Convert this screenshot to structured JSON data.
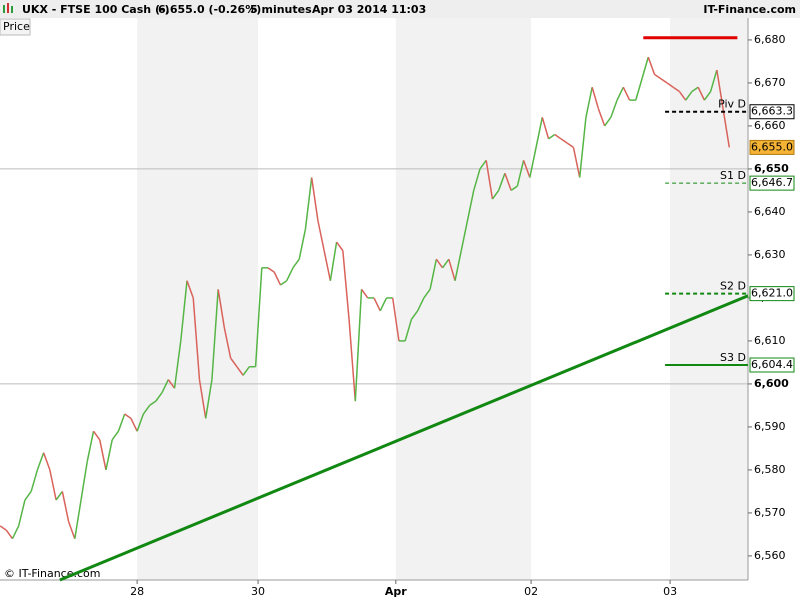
{
  "header": {
    "symbol": "UKX - FTSE 100 Cash (-)",
    "quote": "6,655.0 (-0.26%)",
    "interval": "5 minutes",
    "datetime": "Apr 03 2014 11:03",
    "brand": "IT-Finance.com"
  },
  "chart_data": {
    "type": "line",
    "legend_label": "Price",
    "watermark": "© IT-Finance.com",
    "x": [
      0,
      1,
      2,
      3,
      4,
      5,
      6,
      7,
      8,
      9,
      10,
      11,
      12,
      13,
      14,
      15,
      16,
      17,
      18,
      19,
      20,
      21,
      22,
      23,
      24,
      25,
      26,
      27,
      28,
      29,
      30,
      31,
      32,
      33,
      34,
      35,
      36,
      37,
      38,
      39,
      40,
      41,
      42,
      43,
      44,
      45,
      46,
      47,
      48,
      49,
      50,
      51,
      52,
      53,
      54,
      55,
      56,
      57,
      58,
      59,
      60,
      61,
      62,
      63,
      64,
      65,
      66,
      67,
      68,
      69,
      70,
      71,
      72,
      73,
      74,
      75,
      76,
      77,
      78,
      79,
      80,
      81,
      82,
      83,
      84,
      85,
      86,
      87,
      88,
      89,
      90,
      91,
      92,
      93,
      94,
      95,
      96,
      97,
      98,
      99,
      100,
      101,
      102,
      103,
      104,
      105,
      106,
      107,
      108,
      109,
      110,
      111,
      112,
      113,
      114,
      115,
      116,
      117
    ],
    "values": [
      6567,
      6566,
      6564,
      6567,
      6573,
      6575,
      6580,
      6584,
      6580,
      6573,
      6575,
      6568,
      6564,
      6573,
      6582,
      6589,
      6587,
      6580,
      6587,
      6589,
      6593,
      6592,
      6589,
      6593,
      6595,
      6596,
      6598,
      6601,
      6599,
      6610,
      6624,
      6620,
      6601,
      6592,
      6601,
      6622,
      6613,
      6606,
      6604,
      6602,
      6604,
      6604,
      6627,
      6627,
      6626,
      6623,
      6624,
      6627,
      6629,
      6636,
      6648,
      6638,
      6631,
      6624,
      6633,
      6631,
      6615,
      6596,
      6622,
      6620,
      6620,
      6617,
      6620,
      6620,
      6610,
      6610,
      6615,
      6617,
      6620,
      6622,
      6629,
      6627,
      6629,
      6624,
      6631,
      6638,
      6645,
      6650,
      6652,
      6643,
      6645,
      6649,
      6645,
      6646,
      6652,
      6648,
      6655,
      6662,
      6657,
      6658,
      6657,
      6656,
      6655,
      6648,
      6662,
      6669,
      6664,
      6660,
      6662,
      6666,
      6669,
      6666,
      6666,
      6671,
      6676,
      6672,
      6671,
      6670,
      6669,
      6668,
      6666,
      6668,
      6669,
      6666,
      6668,
      6673,
      6664,
      6655
    ],
    "up_color": "#55b545",
    "down_color": "#d9625a",
    "xlim": [
      0,
      120
    ],
    "xticks": [
      {
        "value": 22,
        "label": "28"
      },
      {
        "value": 41.4,
        "label": "30"
      },
      {
        "value": 63.5,
        "label": "Apr"
      },
      {
        "value": 85.2,
        "label": "02"
      },
      {
        "value": 107.5,
        "label": "03"
      }
    ],
    "ylim": [
      6554.4,
      6685.1
    ],
    "yticks": [
      {
        "value": 6560,
        "label": "6,560"
      },
      {
        "value": 6570,
        "label": "6,570"
      },
      {
        "value": 6580,
        "label": "6,580"
      },
      {
        "value": 6590,
        "label": "6,590"
      },
      {
        "value": 6600,
        "label": "6,600"
      },
      {
        "value": 6610,
        "label": "6,610"
      },
      {
        "value": 6620,
        "label": "6,620"
      },
      {
        "value": 6630,
        "label": "6,630"
      },
      {
        "value": 6640,
        "label": "6,640"
      },
      {
        "value": 6650,
        "label": "6,650"
      },
      {
        "value": 6660,
        "label": "6,660"
      },
      {
        "value": 6670,
        "label": "6,670"
      },
      {
        "value": 6680,
        "label": "6,680"
      }
    ],
    "ygrid": [
      6600,
      6650
    ],
    "current_price": {
      "value": 6655.0,
      "value_label": "6,655.0",
      "color": "#f5b335"
    },
    "levels": [
      {
        "name": "Piv D",
        "value": 6663.3,
        "value_label": "6,663.3",
        "color": "#000000",
        "style": "dashed",
        "width": 2,
        "x": [
          106.7,
          120
        ]
      },
      {
        "name": "S1 D",
        "value": 6646.7,
        "value_label": "6,646.7",
        "color": "#118811",
        "style": "dashed",
        "width": 1,
        "x": [
          106.7,
          120
        ]
      },
      {
        "name": "S2 D",
        "value": 6621.0,
        "value_label": "6,621.0",
        "color": "#118811",
        "style": "dashed",
        "width": 2,
        "x": [
          106.7,
          120
        ]
      },
      {
        "name": "S3 D",
        "value": 6604.4,
        "value_label": "6,604.4",
        "color": "#118811",
        "style": "solid",
        "width": 2,
        "x": [
          106.7,
          120
        ]
      }
    ],
    "resistance": {
      "values": [
        6680.5,
        6680.5
      ],
      "x": [
        103.2,
        118.3
      ],
      "color": "#e00000"
    },
    "trendline": {
      "values": [
        6554.4,
        6620.5
      ],
      "x": [
        9.6,
        120
      ],
      "color": "#118811"
    }
  }
}
